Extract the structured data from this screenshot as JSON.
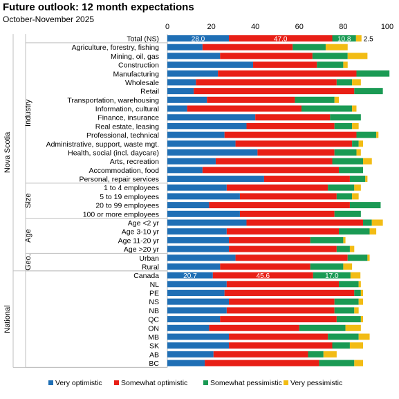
{
  "title": "Future outlook: 12 month expectations",
  "subtitle": "October-November 2025",
  "chart_data": {
    "type": "bar",
    "orientation": "horizontal",
    "stacked": true,
    "title": "Future outlook: 12 month expectations",
    "subtitle": "October-November 2025",
    "xlim": [
      0,
      100
    ],
    "x_ticks": [
      "0",
      "20",
      "40",
      "60",
      "80",
      "100"
    ],
    "grid": false,
    "legend_position": "bottom",
    "colors": {
      "Very optimistic": "#1f6fb5",
      "Somewhat optimistic": "#e81f16",
      "Somewhat pessimistic": "#1a9a54",
      "Very pessimistic": "#f2bc14"
    },
    "series_names": [
      "Very optimistic",
      "Somewhat optimistic",
      "Somewhat pessimistic",
      "Very pessimistic"
    ],
    "groups": [
      {
        "level1": "Nova Scotia",
        "level2": "",
        "start": 0,
        "end": 0
      },
      {
        "level1": "Nova Scotia",
        "level2": "Industry",
        "start": 1,
        "end": 16
      },
      {
        "level1": "Nova Scotia",
        "level2": "Size",
        "start": 17,
        "end": 20
      },
      {
        "level1": "Nova Scotia",
        "level2": "Age",
        "start": 21,
        "end": 24
      },
      {
        "level1": "Nova Scotia",
        "level2": "Geo.",
        "start": 25,
        "end": 26
      },
      {
        "level1": "National",
        "level2": "",
        "start": 27,
        "end": 37
      }
    ],
    "level1_labels": [
      {
        "text": "Nova Scotia",
        "start": 0,
        "end": 26
      },
      {
        "text": "National",
        "start": 27,
        "end": 37
      }
    ],
    "categories": [
      "Total (NS)",
      "Agriculture, forestry, fishing",
      "Mining, oil, gas",
      "Construction",
      "Manufacturing",
      "Wholesale",
      "Retail",
      "Transportation, warehousing",
      "Information, cultural",
      "Finance, insurance",
      "Real estate, leasing",
      "Professional, technical",
      "Administrative, support, waste mgt.",
      "Health, social (incl. daycare)",
      "Arts, recreation",
      "Accommodation, food",
      "Personal, repair services",
      "1 to 4 employees",
      "5 to 19 employees",
      "20 to 99 employees",
      "100 or more employees",
      "Age <2 yr",
      "Age 3-10 yr",
      "Age 11-20 yr",
      "Age >20 yr",
      "Urban",
      "Rural",
      "Canada",
      "NL",
      "PE",
      "NS",
      "NB",
      "QC",
      "ON",
      "MB",
      "SK",
      "AB",
      "BC"
    ],
    "series": [
      {
        "name": "Very optimistic",
        "values": [
          28.0,
          16,
          24,
          39,
          23,
          13,
          12,
          18,
          9,
          40,
          36,
          26,
          31,
          41,
          22,
          16,
          44,
          27,
          33,
          19,
          33,
          36,
          27,
          28,
          28,
          31,
          24,
          20.7,
          27,
          26,
          28,
          27,
          24,
          19,
          28,
          28,
          21,
          17
        ]
      },
      {
        "name": "Somewhat optimistic",
        "values": [
          47.0,
          41,
          42,
          29,
          63,
          64,
          73,
          40,
          52,
          34,
          40,
          60,
          53,
          35,
          53,
          62,
          39,
          46,
          44,
          64,
          43,
          53,
          51,
          37,
          49,
          51,
          41,
          45.6,
          51,
          59,
          48,
          49,
          53,
          41,
          45,
          47,
          43,
          52
        ]
      },
      {
        "name": "Somewhat pessimistic",
        "values": [
          10.8,
          15,
          16,
          12,
          15,
          7,
          13,
          18,
          23,
          14,
          8,
          9,
          3,
          10,
          14,
          11,
          7,
          12,
          7,
          14,
          12,
          4,
          14,
          15,
          6,
          9,
          15,
          17.0,
          9,
          3,
          11,
          9,
          11,
          21,
          14,
          8,
          7,
          16
        ]
      },
      {
        "name": "Very pessimistic",
        "values": [
          2.5,
          10,
          9,
          2,
          0,
          4,
          0,
          2,
          2,
          0,
          3,
          1,
          2,
          2,
          4,
          0,
          1,
          3,
          3,
          0,
          0,
          5,
          3,
          1,
          2,
          1,
          4,
          4.5,
          1,
          1,
          2,
          2,
          1,
          7,
          5,
          6,
          6,
          4
        ]
      }
    ],
    "data_labels": [
      {
        "row": 0,
        "series": 0,
        "text": "28.0"
      },
      {
        "row": 0,
        "series": 1,
        "text": "47.0"
      },
      {
        "row": 0,
        "series": 2,
        "text": "10.8"
      },
      {
        "row": 0,
        "series": 3,
        "text": "2.5"
      },
      {
        "row": 27,
        "series": 0,
        "text": "20.7"
      },
      {
        "row": 27,
        "series": 1,
        "text": "45.6"
      },
      {
        "row": 27,
        "series": 2,
        "text": "17.0"
      }
    ]
  }
}
